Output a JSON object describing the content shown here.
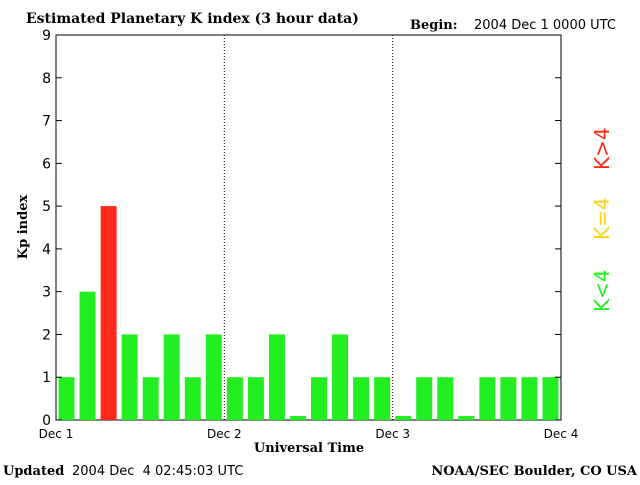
{
  "header": {
    "title": "Estimated Planetary K index (3 hour data)",
    "begin_label": "Begin:",
    "begin_value": "2004 Dec 1 0000 UTC"
  },
  "footer": {
    "updated_label": "Updated",
    "updated_value": "2004 Dec  4 02:45:03 UTC",
    "credit": "NOAA/SEC Boulder, CO USA"
  },
  "legend": {
    "items": [
      {
        "label": "K>4",
        "color": "#ff2a1a"
      },
      {
        "label": "K=4",
        "color": "#ffd21a"
      },
      {
        "label": "K<4",
        "color": "#22ee22"
      }
    ]
  },
  "colors": {
    "low": "#22ee22",
    "storm": "#ff2a1a",
    "active": "#ffd21a"
  },
  "chart_data": {
    "type": "bar",
    "title": "Estimated Planetary K index (3 hour data)",
    "xlabel": "Universal Time",
    "ylabel": "Kp index",
    "ylim": [
      0,
      9
    ],
    "yticks": [
      "0",
      "1",
      "2",
      "3",
      "4",
      "5",
      "6",
      "7",
      "8",
      "9"
    ],
    "xticks": [
      "Dec 1",
      "Dec 2",
      "Dec 3",
      "Dec 4"
    ],
    "grid": "dotted vertical day separators",
    "values": [
      1,
      3,
      5,
      2,
      1,
      2,
      1,
      2,
      1,
      1,
      2,
      0,
      1,
      2,
      1,
      1,
      0,
      1,
      1,
      0,
      1,
      1,
      1,
      1
    ]
  }
}
